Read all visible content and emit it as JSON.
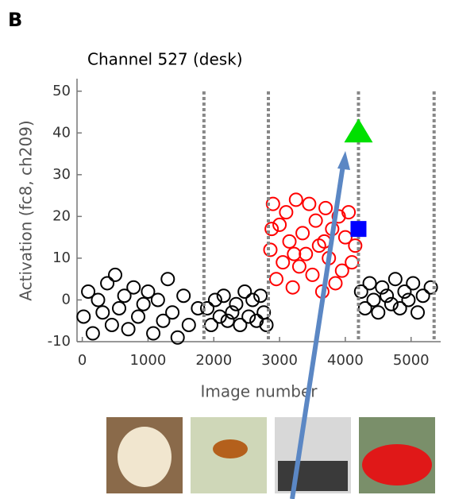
{
  "panel_label": "B",
  "chart_data": {
    "type": "scatter",
    "title": "Channel 527 (desk)",
    "xlabel": "Image number",
    "ylabel": "Activation (fc8, ch209)",
    "xlim": [
      -80,
      5450
    ],
    "ylim": [
      -10,
      53
    ],
    "xticks": [
      0,
      1000,
      2000,
      3000,
      4000,
      5000
    ],
    "yticks": [
      -10,
      0,
      10,
      20,
      30,
      40,
      50
    ],
    "boundaries": [
      1850,
      2830,
      4200,
      5350
    ],
    "series": [
      {
        "color": "#000000",
        "x": [
          20,
          90,
          160,
          240,
          310,
          380,
          450,
          500,
          560,
          640,
          700,
          780,
          850,
          930,
          1000,
          1080,
          1150,
          1230,
          1300,
          1370,
          1450,
          1540,
          1620,
          1760,
          1900,
          1960,
          2020,
          2090,
          2150,
          2210,
          2280,
          2340,
          2400,
          2470,
          2530,
          2590,
          2650,
          2710,
          2760,
          2800,
          4240,
          4300,
          4370,
          4430,
          4500,
          4560,
          4630,
          4700,
          4760,
          4830,
          4900,
          4960,
          5030,
          5100,
          5180,
          5300
        ],
        "values": [
          -4,
          2,
          -8,
          0,
          -3,
          4,
          -6,
          6,
          -2,
          1,
          -7,
          3,
          -4,
          -1,
          2,
          -8,
          0,
          -5,
          5,
          -3,
          -9,
          1,
          -6,
          -2,
          -2,
          -6,
          0,
          -4,
          1,
          -5,
          -3,
          -1,
          -6,
          2,
          -4,
          0,
          -5,
          1,
          -3,
          -6,
          2,
          -2,
          4,
          0,
          -3,
          3,
          1,
          -1,
          5,
          -2,
          2,
          0,
          4,
          -3,
          1,
          3
        ]
      },
      {
        "color": "#ff0000",
        "x": [
          2860,
          2900,
          2950,
          3000,
          3050,
          3100,
          3150,
          3200,
          3250,
          3300,
          3350,
          3400,
          3450,
          3500,
          3550,
          3600,
          3650,
          3700,
          3750,
          3800,
          3850,
          3900,
          3950,
          4000,
          4050,
          4100,
          4150,
          2880,
          3220,
          3680
        ],
        "values": [
          12,
          23,
          5,
          18,
          9,
          21,
          14,
          3,
          24,
          8,
          16,
          11,
          23,
          6,
          19,
          13,
          2,
          22,
          10,
          17,
          4,
          20,
          7,
          15,
          21,
          9,
          13,
          17,
          11,
          14
        ]
      }
    ],
    "markers": [
      {
        "shape": "triangle",
        "color": "#00e000",
        "x": 4200,
        "value": 40
      },
      {
        "shape": "square",
        "color": "#0000ff",
        "x": 4200,
        "value": 17
      }
    ]
  }
}
